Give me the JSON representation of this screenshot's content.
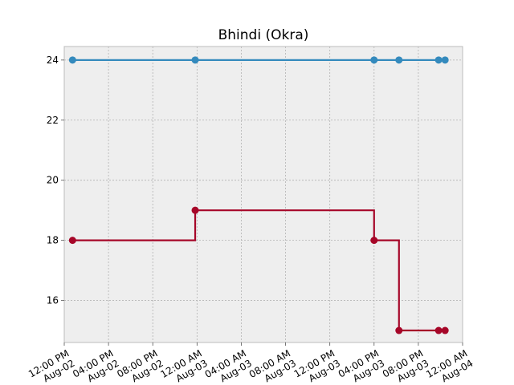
{
  "chart_data": {
    "type": "line",
    "title": "Bhindi (Okra)",
    "xlabel": "",
    "ylabel": "",
    "step": "post",
    "grid": true,
    "legend": false,
    "x": [
      "2022-08-02 12:45",
      "2022-08-02 23:50",
      "2022-08-03 16:00",
      "2022-08-03 18:15",
      "2022-08-03 21:50",
      "2022-08-03 22:25"
    ],
    "series": [
      {
        "color": "#348ABD",
        "marker": "circle",
        "values": [
          24,
          24,
          24,
          24,
          24,
          24
        ]
      },
      {
        "color": "#A60628",
        "marker": "circle",
        "values": [
          18,
          19,
          18,
          15,
          15,
          15
        ]
      }
    ],
    "xlim": [
      "2022-08-02 12:00",
      "2022-08-04 00:00"
    ],
    "ylim": [
      14.6,
      24.45
    ],
    "xticks": [
      {
        "at": "2022-08-02 12:00",
        "time": "12:00 PM",
        "date": "Aug-02"
      },
      {
        "at": "2022-08-02 16:00",
        "time": "04:00 PM",
        "date": "Aug-02"
      },
      {
        "at": "2022-08-02 20:00",
        "time": "08:00 PM",
        "date": "Aug-02"
      },
      {
        "at": "2022-08-03 00:00",
        "time": "12:00 AM",
        "date": "Aug-03"
      },
      {
        "at": "2022-08-03 04:00",
        "time": "04:00 AM",
        "date": "Aug-03"
      },
      {
        "at": "2022-08-03 08:00",
        "time": "08:00 AM",
        "date": "Aug-03"
      },
      {
        "at": "2022-08-03 12:00",
        "time": "12:00 PM",
        "date": "Aug-03"
      },
      {
        "at": "2022-08-03 16:00",
        "time": "04:00 PM",
        "date": "Aug-03"
      },
      {
        "at": "2022-08-03 20:00",
        "time": "08:00 PM",
        "date": "Aug-03"
      },
      {
        "at": "2022-08-04 00:00",
        "time": "12:00 AM",
        "date": "Aug-04"
      }
    ],
    "yticks": [
      16,
      18,
      20,
      22,
      24
    ],
    "colors": {
      "background": "#EEEEEE",
      "grid": "#B2B2B2",
      "frame": "#BCBCBC"
    }
  }
}
